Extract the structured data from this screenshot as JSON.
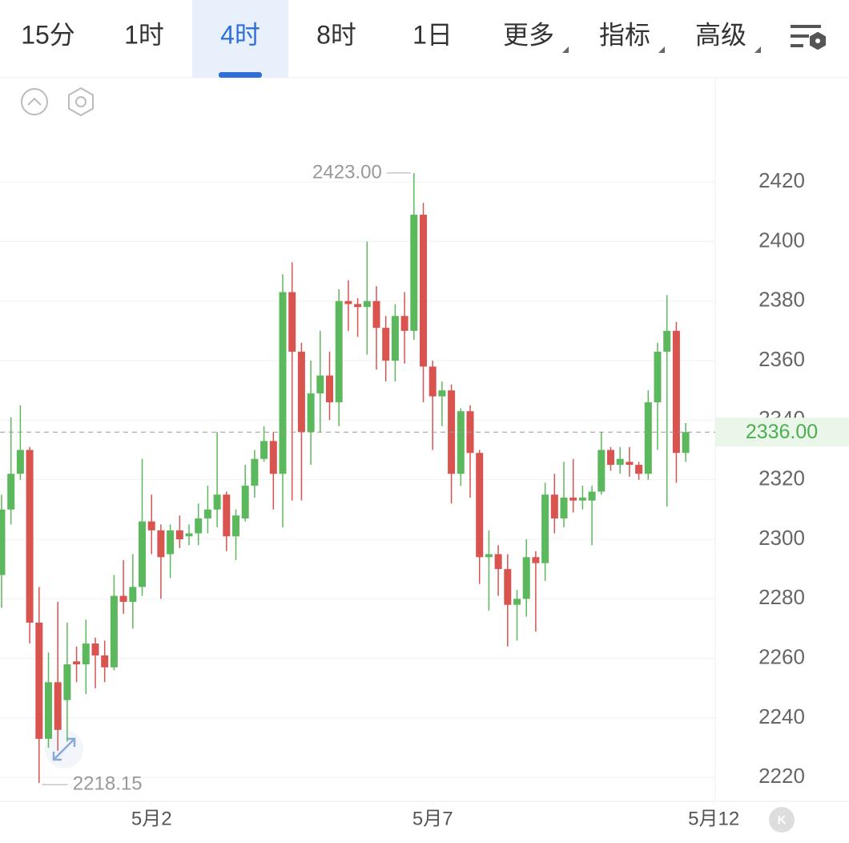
{
  "tabs": [
    "15分",
    "1时",
    "4时",
    "8时",
    "1日",
    "更多",
    "指标",
    "高级"
  ],
  "active_tab": 2,
  "chart_data": {
    "type": "candlestick",
    "categories": [
      null,
      null,
      null,
      null,
      null,
      null,
      null,
      null,
      null,
      null,
      null,
      null,
      null,
      null,
      null,
      null,
      null,
      null,
      null,
      null,
      null,
      null,
      null,
      null,
      null,
      null,
      null,
      null,
      null,
      null,
      null,
      null,
      null,
      null,
      null,
      null,
      null,
      null,
      null,
      null,
      null,
      null,
      null,
      null,
      null,
      null,
      null,
      null,
      null,
      null,
      null,
      null,
      null,
      null,
      null,
      null,
      null,
      null,
      null,
      null,
      null,
      null,
      null,
      null,
      null,
      null,
      null,
      null,
      null,
      null,
      null,
      null,
      null,
      null
    ],
    "open": [
      2288,
      2310,
      2322,
      2330,
      2272,
      2233,
      2252,
      2246,
      2259,
      2258,
      2265,
      2261,
      2257,
      2281,
      2279,
      2284,
      2306,
      2303,
      2295,
      2303,
      2301,
      2302,
      2307,
      2310,
      2315,
      2301,
      2307,
      2318,
      2327,
      2333,
      2322,
      2383,
      2363,
      2336,
      2349,
      2355,
      2346,
      2380,
      2379,
      2378,
      2380,
      2371,
      2360,
      2375,
      2370,
      2409,
      2358,
      2348,
      2350,
      2322,
      2343,
      2329,
      2294,
      2295,
      2290,
      2278,
      2280,
      2294,
      2292,
      2315,
      2307,
      2314,
      2313,
      2313,
      2316,
      2330,
      2325,
      2326,
      2325,
      2322,
      2346,
      2363,
      2370,
      2329
    ],
    "high": [
      2315,
      2341,
      2345,
      2331,
      2284,
      2262,
      2279,
      2272,
      2264,
      2273,
      2267,
      2266,
      2288,
      2293,
      2295,
      2327,
      2315,
      2305,
      2305,
      2308,
      2305,
      2312,
      2318,
      2336,
      2316,
      2310,
      2325,
      2330,
      2338,
      2336,
      2389,
      2393,
      2366,
      2360,
      2370,
      2363,
      2384,
      2387,
      2381,
      2400,
      2385,
      2375,
      2379,
      2383,
      2423,
      2413,
      2360,
      2353,
      2352,
      2344,
      2345,
      2330,
      2303,
      2298,
      2295,
      2283,
      2300,
      2296,
      2319,
      2322,
      2326,
      2327,
      2318,
      2318,
      2336,
      2331,
      2331,
      2331,
      2326,
      2350,
      2366,
      2382,
      2373,
      2339
    ],
    "low": [
      2277,
      2305,
      2320,
      2265,
      2218.15,
      2230,
      2229,
      2232,
      2252,
      2248,
      2250,
      2252,
      2256,
      2275,
      2270,
      2281,
      2295,
      2280,
      2287,
      2297,
      2298,
      2298,
      2302,
      2304,
      2296,
      2293,
      2306,
      2314,
      2326,
      2310,
      2304,
      2313,
      2313,
      2325,
      2336,
      2340,
      2338,
      2370,
      2368,
      2362,
      2357,
      2353,
      2353,
      2359,
      2367,
      2346,
      2330,
      2338,
      2312,
      2318,
      2314,
      2285,
      2276,
      2281,
      2264,
      2266,
      2274,
      2269,
      2286,
      2302,
      2304,
      2309,
      2310,
      2298,
      2315,
      2323,
      2322,
      2321,
      2320,
      2320,
      2330,
      2311,
      2319,
      2326
    ],
    "close": [
      2310,
      2322,
      2330,
      2272,
      2233,
      2252,
      2236,
      2258,
      2258,
      2265,
      2261,
      2257,
      2281,
      2279,
      2284,
      2306,
      2303,
      2294,
      2303,
      2300,
      2302,
      2307,
      2310,
      2315,
      2301,
      2308,
      2318,
      2327,
      2333,
      2322,
      2383,
      2363,
      2336,
      2349,
      2355,
      2346,
      2380,
      2379,
      2378,
      2380,
      2371,
      2360,
      2375,
      2370,
      2409,
      2358,
      2348,
      2350,
      2322,
      2343,
      2329,
      2294,
      2295,
      2290,
      2278,
      2280,
      2294,
      2292,
      2315,
      2307,
      2314,
      2313,
      2314,
      2316,
      2330,
      2325,
      2327,
      2325,
      2322,
      2346,
      2363,
      2370,
      2329,
      2336
    ],
    "up_color": "#5cb85c",
    "down_color": "#d9534f",
    "ylim": [
      2212,
      2455
    ],
    "yticks": [
      2220,
      2240,
      2260,
      2280,
      2300,
      2320,
      2340,
      2360,
      2380,
      2400,
      2420
    ],
    "xticks": [
      {
        "value": 16,
        "label": "5月2"
      },
      {
        "value": 46,
        "label": "5月7"
      },
      {
        "value": 76,
        "label": "5月12"
      }
    ],
    "grid": true,
    "max_label": {
      "value": 2423,
      "label": "2423.00"
    },
    "min_label": {
      "value": 2218.15,
      "label": "2218.15"
    },
    "last_price": {
      "value": 2336,
      "label": "2336.00"
    }
  }
}
